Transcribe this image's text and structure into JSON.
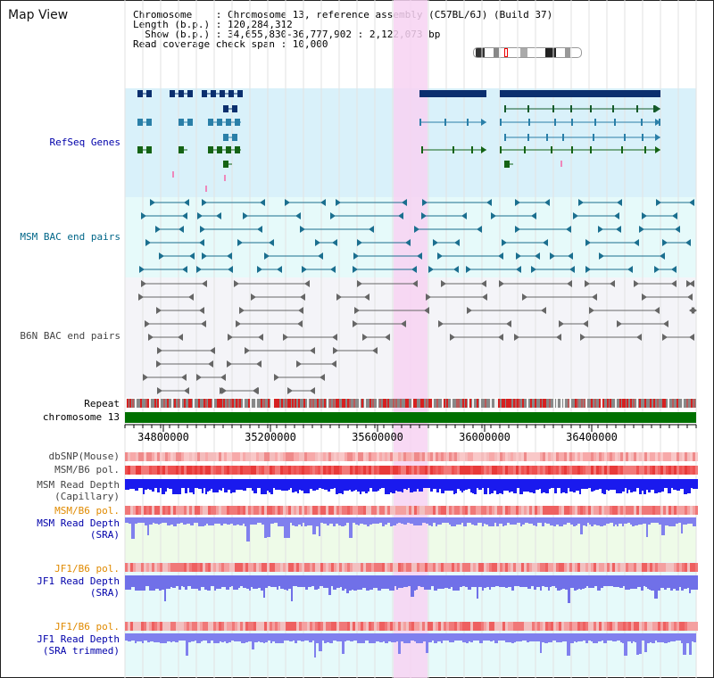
{
  "title": "Map View",
  "info": {
    "line1": "Chromosome    : Chromosome 13, reference assembly (C57BL/6J) (Build 37)",
    "line2": "Length (b.p.) : 120,284,312",
    "line3": "  Show (b.p.) : 34,655,830-36,777,902 : 2,122,073 bp",
    "line4": "Read coverage check span : 10,000"
  },
  "tracks": {
    "refseq": "RefSeq Genes",
    "msm_bac": "MSM BAC end pairs",
    "b6n_bac": "B6N BAC end pairs",
    "repeat": "Repeat",
    "chromosome": "chromosome 13",
    "dbsnp": "dbSNP(Mouse)",
    "msm_b6_pol": "MSM/B6 pol.",
    "msm_depth_cap": "MSM Read Depth\n(Capillary)",
    "msm_b6_pol2": "MSM/B6 pol.",
    "msm_depth_sra": "MSM Read Depth\n(SRA)",
    "jf1_b6_pol": "JF1/B6 pol.",
    "jf1_depth_sra": "JF1 Read Depth\n(SRA)",
    "jf1_b6_pol2": "JF1/B6 pol.",
    "jf1_depth_trim": "JF1 Read Depth\n(SRA trimmed)"
  },
  "axis": {
    "ticks": [
      "34800000",
      "35200000",
      "35600000",
      "36000000",
      "36400000"
    ]
  },
  "colors": {
    "refseq_label": "#0000aa",
    "msm_label": "#006688",
    "orange_label": "#e08a00",
    "blue_label": "#0000aa",
    "highlight": "#f7d2f2"
  }
}
